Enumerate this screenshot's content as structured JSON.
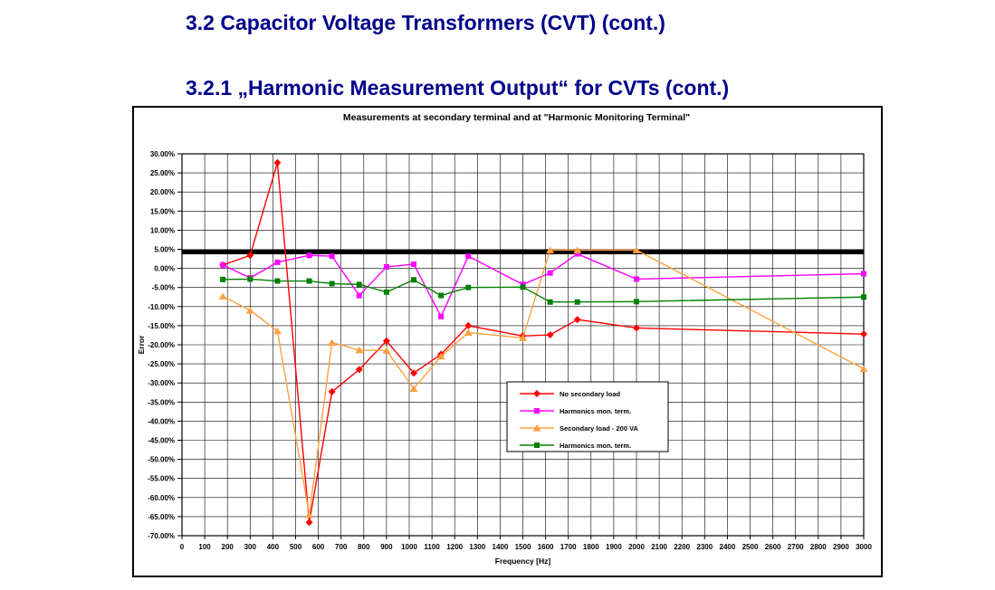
{
  "page": {
    "title1": "3.2 Capacitor Voltage Transformers (CVT) (cont.)",
    "title2": "3.2.1 „Harmonic Measurement Output“ for CVTs (cont.)",
    "title_color": "#00008B"
  },
  "chart_data": {
    "type": "line",
    "title": "Measurements at secondary terminal and at \"Harmonic Monitoring Terminal\"",
    "xlabel": "Frequency [Hz]",
    "ylabel": "Error",
    "xlim": [
      0,
      3000
    ],
    "ylim": [
      -70,
      30
    ],
    "grid": true,
    "legend_position": "inside-center-right",
    "x_ticks": [
      0,
      100,
      200,
      300,
      400,
      500,
      600,
      700,
      800,
      900,
      1000,
      1100,
      1200,
      1300,
      1400,
      1500,
      1600,
      1700,
      1800,
      1900,
      2000,
      2100,
      2200,
      2300,
      2400,
      2500,
      2600,
      2700,
      2800,
      2900,
      3000
    ],
    "y_tick_labels": [
      "30.00%",
      "25.00%",
      "20.00%",
      "15.00%",
      "10.00%",
      "5.00%",
      "0.00%",
      "-5.00%",
      "-10.00%",
      "-15.00%",
      "-20.00%",
      "-25.00%",
      "-30.00%",
      "-35.00%",
      "-40.00%",
      "-45.00%",
      "-50.00%",
      "-55.00%",
      "-60.00%",
      "-65.00%",
      "-70.00%"
    ],
    "limit_line": {
      "y": 4.3,
      "color": "#000000",
      "stroke_width": 5
    },
    "x": [
      180,
      300,
      420,
      560,
      660,
      780,
      900,
      1020,
      1140,
      1260,
      1500,
      1620,
      1740,
      2000,
      3000
    ],
    "series": [
      {
        "name": "No secondary load",
        "color": "#FF0000",
        "marker": "diamond",
        "values": [
          0.9,
          3.4,
          27.7,
          -66.5,
          -32.3,
          -26.5,
          -19.0,
          -27.4,
          -22.5,
          -15.0,
          -17.7,
          -17.4,
          -13.4,
          -15.6,
          -17.2
        ]
      },
      {
        "name": "Harmonics mon. term.",
        "color": "#FF00FF",
        "marker": "square",
        "values": [
          0.9,
          -2.5,
          1.6,
          3.4,
          3.2,
          -7.1,
          0.4,
          1.1,
          -12.6,
          3.2,
          -4.2,
          -1.2,
          3.8,
          -2.8,
          -1.4
        ]
      },
      {
        "name": "Secondary load - 200 VA",
        "color": "#FFA040",
        "marker": "triangle",
        "values": [
          -7.3,
          -11.0,
          -16.4,
          -64.5,
          -19.4,
          -21.4,
          -21.5,
          -31.5,
          -23.0,
          -16.8,
          -18.2,
          4.8,
          4.8,
          4.8,
          -26.3
        ]
      },
      {
        "name": "Harmonics mon. term.",
        "color": "#008000",
        "marker": "square",
        "values": [
          -2.9,
          -2.8,
          -3.3,
          -3.3,
          -4.0,
          -4.2,
          -6.2,
          -3.0,
          -7.1,
          -5.0,
          -4.9,
          -8.8,
          -8.8,
          -8.7,
          -7.5
        ]
      }
    ]
  }
}
